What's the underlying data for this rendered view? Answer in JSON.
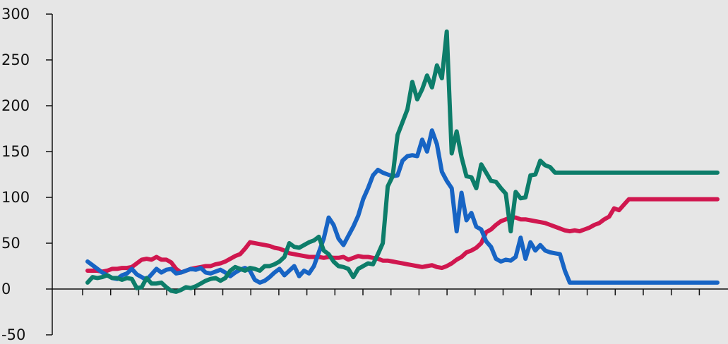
{
  "chart_data": {
    "type": "line",
    "title": "",
    "xlabel": "",
    "ylabel": "",
    "ylim": [
      -50,
      300
    ],
    "yticks": [
      300,
      250,
      200,
      150,
      100,
      50,
      0,
      -50
    ],
    "grid": false,
    "legend": "none",
    "x_tick_count": 23,
    "x": [
      0,
      1,
      2,
      3,
      4,
      5,
      6,
      7,
      8,
      9,
      10,
      11,
      12,
      13,
      14,
      15,
      16,
      17,
      18,
      19,
      20,
      21,
      22,
      23,
      24,
      25,
      26,
      27,
      28,
      29,
      30,
      31,
      32,
      33,
      34,
      35,
      36,
      37,
      38,
      39,
      40,
      41,
      42,
      43,
      44,
      45,
      46,
      47,
      48,
      49,
      50,
      51,
      52,
      53,
      54,
      55,
      56,
      57,
      58,
      59,
      60,
      61,
      62,
      63,
      64,
      65,
      66,
      67,
      68,
      69,
      70,
      71,
      72,
      73,
      74,
      75,
      76,
      77,
      78,
      79,
      80,
      81,
      82,
      83,
      84,
      85,
      86,
      87,
      88,
      89,
      90,
      91,
      92,
      93,
      94,
      95,
      96,
      97,
      98,
      99,
      100,
      101,
      102,
      103,
      104,
      105,
      106,
      107,
      108,
      109,
      110,
      111,
      112,
      113,
      114,
      115,
      116,
      117,
      118,
      119,
      120,
      121,
      122,
      123,
      124,
      125,
      126,
      127,
      128
    ],
    "series": [
      {
        "color": "#d0174f",
        "values": [
          20,
          20,
          20,
          19,
          20,
          22,
          22,
          23,
          23,
          24,
          28,
          32,
          33,
          32,
          35,
          32,
          32,
          29,
          22,
          18,
          20,
          22,
          23,
          24,
          25,
          25,
          27,
          28,
          30,
          33,
          36,
          38,
          44,
          51,
          50,
          49,
          48,
          47,
          45,
          44,
          42,
          39,
          38,
          37,
          36,
          35,
          35,
          35,
          34,
          35,
          34,
          34,
          35,
          32,
          34,
          36,
          35,
          35,
          34,
          33,
          31,
          31,
          30,
          29,
          28,
          27,
          26,
          25,
          24,
          25,
          26,
          24,
          23,
          25,
          28,
          32,
          35,
          40,
          42,
          45,
          50,
          62,
          65,
          70,
          74,
          76,
          78,
          78,
          76,
          76,
          75,
          74,
          73,
          72,
          70,
          68,
          66,
          64,
          63,
          64,
          63,
          65,
          67,
          70,
          72,
          76,
          79,
          88,
          86,
          92,
          98,
          98,
          98,
          98,
          98,
          98,
          98,
          98,
          98,
          98,
          98,
          98,
          98,
          98,
          98,
          98,
          98,
          98,
          98
        ]
      },
      {
        "color": "#1764c4",
        "values": [
          30,
          26,
          22,
          18,
          15,
          12,
          11,
          15,
          17,
          22,
          16,
          13,
          10,
          16,
          22,
          18,
          21,
          22,
          17,
          18,
          20,
          22,
          21,
          23,
          18,
          17,
          19,
          21,
          18,
          14,
          18,
          21,
          23,
          20,
          10,
          7,
          9,
          13,
          18,
          22,
          15,
          20,
          25,
          14,
          20,
          17,
          25,
          40,
          55,
          78,
          70,
          55,
          48,
          58,
          68,
          80,
          98,
          110,
          124,
          130,
          127,
          125,
          123,
          124,
          140,
          145,
          146,
          145,
          163,
          150,
          173,
          158,
          128,
          118,
          110,
          63,
          105,
          75,
          83,
          68,
          65,
          52,
          46,
          33,
          30,
          32,
          31,
          35,
          56,
          33,
          51,
          42,
          48,
          42,
          40,
          39,
          38,
          20,
          7,
          7,
          7,
          7,
          7,
          7,
          7,
          7,
          7,
          7,
          7,
          7,
          7,
          7,
          7,
          7,
          7,
          7,
          7,
          7,
          7,
          7,
          7,
          7,
          7,
          7,
          7,
          7,
          7,
          7,
          7
        ]
      },
      {
        "color": "#0d7d6a",
        "values": [
          7,
          13,
          12,
          13,
          15,
          12,
          12,
          10,
          12,
          11,
          1,
          2,
          12,
          6,
          6,
          7,
          2,
          -2,
          -3,
          -1,
          2,
          1,
          3,
          6,
          9,
          11,
          12,
          9,
          12,
          20,
          24,
          22,
          20,
          23,
          22,
          20,
          25,
          25,
          27,
          30,
          35,
          50,
          46,
          45,
          48,
          51,
          53,
          57,
          42,
          38,
          30,
          25,
          24,
          22,
          13,
          22,
          25,
          28,
          27,
          38,
          50,
          112,
          123,
          168,
          182,
          196,
          226,
          207,
          218,
          233,
          220,
          244,
          230,
          281,
          148,
          172,
          144,
          123,
          122,
          110,
          136,
          127,
          118,
          117,
          110,
          104,
          63,
          106,
          99,
          100,
          124,
          125,
          140,
          135,
          133,
          127,
          127,
          127,
          127,
          127,
          127,
          127,
          127,
          127,
          127,
          127,
          127,
          127,
          127,
          127,
          127,
          127,
          127,
          127,
          127,
          127,
          127,
          127,
          127,
          127,
          127,
          127,
          127,
          127,
          127,
          127,
          127,
          127,
          127
        ]
      }
    ]
  }
}
